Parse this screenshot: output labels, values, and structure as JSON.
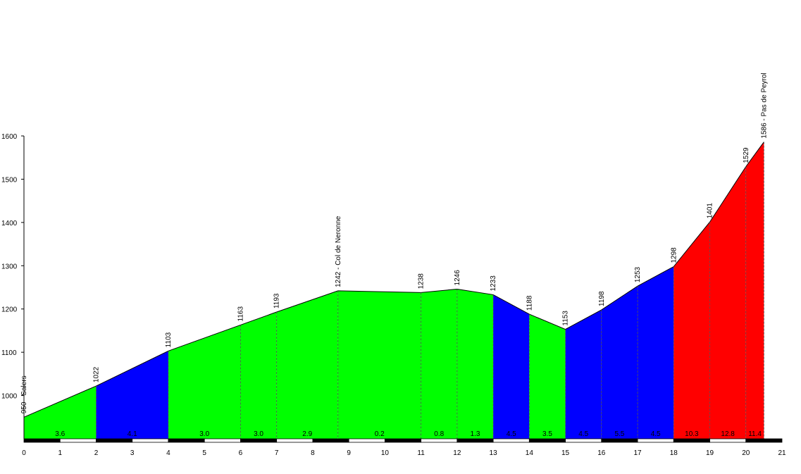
{
  "chart_data": {
    "type": "area",
    "title": "",
    "xlabel": "",
    "ylabel": "",
    "xlim": [
      0,
      21
    ],
    "ylim": [
      900,
      1600
    ],
    "x_ticks": [
      0,
      1,
      2,
      3,
      4,
      5,
      6,
      7,
      8,
      9,
      10,
      11,
      12,
      13,
      14,
      15,
      16,
      17,
      18,
      19,
      20,
      21
    ],
    "y_ticks": [
      1000,
      1100,
      1200,
      1300,
      1400,
      1500,
      1600
    ],
    "grid": false,
    "profile": [
      {
        "x": 0,
        "y": 950
      },
      {
        "x": 2,
        "y": 1022
      },
      {
        "x": 4,
        "y": 1103
      },
      {
        "x": 6,
        "y": 1163
      },
      {
        "x": 7,
        "y": 1193
      },
      {
        "x": 8.7,
        "y": 1242
      },
      {
        "x": 11,
        "y": 1238
      },
      {
        "x": 12,
        "y": 1246
      },
      {
        "x": 13,
        "y": 1233
      },
      {
        "x": 14,
        "y": 1188
      },
      {
        "x": 15,
        "y": 1153
      },
      {
        "x": 16,
        "y": 1198
      },
      {
        "x": 17,
        "y": 1253
      },
      {
        "x": 18,
        "y": 1298
      },
      {
        "x": 19,
        "y": 1401
      },
      {
        "x": 20,
        "y": 1529
      },
      {
        "x": 20.5,
        "y": 1586
      }
    ],
    "segments": [
      {
        "from": 0,
        "to": 2,
        "gradient": "3.6",
        "color": "#00ff00"
      },
      {
        "from": 2,
        "to": 4,
        "gradient": "4.1",
        "color": "#0000ff"
      },
      {
        "from": 4,
        "to": 6,
        "gradient": "3.0",
        "color": "#00ff00"
      },
      {
        "from": 6,
        "to": 7,
        "gradient": "3.0",
        "color": "#00ff00"
      },
      {
        "from": 7,
        "to": 8.7,
        "gradient": "2.9",
        "color": "#00ff00"
      },
      {
        "from": 8.7,
        "to": 11,
        "gradient": "0.2",
        "color": "#00ff00"
      },
      {
        "from": 11,
        "to": 12,
        "gradient": "0.8",
        "color": "#00ff00"
      },
      {
        "from": 12,
        "to": 13,
        "gradient": "1.3",
        "color": "#00ff00"
      },
      {
        "from": 13,
        "to": 14,
        "gradient": "4.5",
        "color": "#0000ff"
      },
      {
        "from": 14,
        "to": 15,
        "gradient": "3.5",
        "color": "#00ff00"
      },
      {
        "from": 15,
        "to": 16,
        "gradient": "4.5",
        "color": "#0000ff"
      },
      {
        "from": 16,
        "to": 17,
        "gradient": "5.5",
        "color": "#0000ff"
      },
      {
        "from": 17,
        "to": 18,
        "gradient": "4.5",
        "color": "#0000ff"
      },
      {
        "from": 18,
        "to": 19,
        "gradient": "10.3",
        "color": "#ff0000"
      },
      {
        "from": 19,
        "to": 20,
        "gradient": "12.8",
        "color": "#ff0000"
      },
      {
        "from": 20,
        "to": 20.5,
        "gradient": "11.4",
        "color": "#ff0000"
      }
    ],
    "annotations": [
      {
        "x": 0,
        "label": "950 - Salers"
      },
      {
        "x": 2,
        "label": "1022"
      },
      {
        "x": 4,
        "label": "1103"
      },
      {
        "x": 6,
        "label": "1163"
      },
      {
        "x": 7,
        "label": "1193"
      },
      {
        "x": 8.7,
        "label": "1242 - Col de Neronne"
      },
      {
        "x": 11,
        "label": "1238"
      },
      {
        "x": 12,
        "label": "1246"
      },
      {
        "x": 13,
        "label": "1233"
      },
      {
        "x": 14,
        "label": "1188"
      },
      {
        "x": 15,
        "label": "1153"
      },
      {
        "x": 16,
        "label": "1198"
      },
      {
        "x": 17,
        "label": "1253"
      },
      {
        "x": 18,
        "label": "1298"
      },
      {
        "x": 19,
        "label": "1401"
      },
      {
        "x": 20,
        "label": "1529"
      },
      {
        "x": 20.5,
        "label": "1586 - Pas de Peyrol"
      }
    ]
  }
}
